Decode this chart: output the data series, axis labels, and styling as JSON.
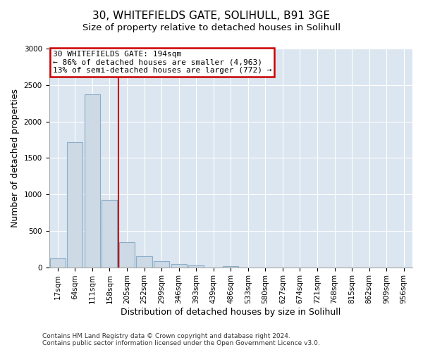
{
  "title": "30, WHITEFIELDS GATE, SOLIHULL, B91 3GE",
  "subtitle": "Size of property relative to detached houses in Solihull",
  "xlabel": "Distribution of detached houses by size in Solihull",
  "ylabel": "Number of detached properties",
  "footer_line1": "Contains HM Land Registry data © Crown copyright and database right 2024.",
  "footer_line2": "Contains public sector information licensed under the Open Government Licence v3.0.",
  "bin_labels": [
    "17sqm",
    "64sqm",
    "111sqm",
    "158sqm",
    "205sqm",
    "252sqm",
    "299sqm",
    "346sqm",
    "393sqm",
    "439sqm",
    "486sqm",
    "533sqm",
    "580sqm",
    "627sqm",
    "674sqm",
    "721sqm",
    "768sqm",
    "815sqm",
    "862sqm",
    "909sqm",
    "956sqm"
  ],
  "bar_heights": [
    120,
    1720,
    2370,
    920,
    340,
    155,
    80,
    45,
    25,
    0,
    20,
    0,
    0,
    0,
    0,
    0,
    0,
    0,
    0,
    0,
    0
  ],
  "bar_color": "#cdd9e5",
  "bar_edge_color": "#8aaec8",
  "vline_color": "#cc0000",
  "annotation_title": "30 WHITEFIELDS GATE: 194sqm",
  "annotation_line2": "← 86% of detached houses are smaller (4,963)",
  "annotation_line3": "13% of semi-detached houses are larger (772) →",
  "annotation_box_edge_color": "#cc0000",
  "annotation_box_face_color": "#ffffff",
  "ylim": [
    0,
    3000
  ],
  "yticks": [
    0,
    500,
    1000,
    1500,
    2000,
    2500,
    3000
  ],
  "fig_background_color": "#ffffff",
  "plot_background_color": "#dce6f0",
  "grid_color": "#ffffff",
  "title_fontsize": 11,
  "subtitle_fontsize": 9.5,
  "axis_label_fontsize": 9,
  "tick_fontsize": 7.5,
  "footer_fontsize": 6.5
}
